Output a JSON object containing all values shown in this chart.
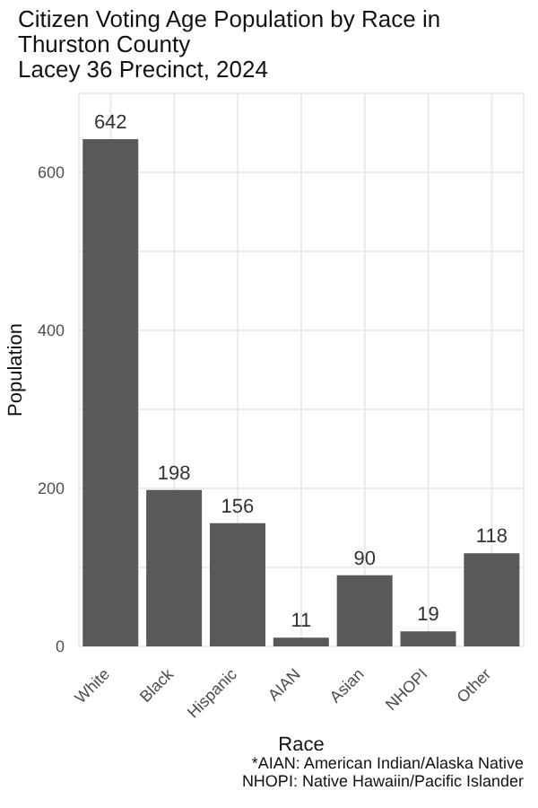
{
  "chart_data": {
    "type": "bar",
    "title": "Citizen Voting Age Population by Race in Thurston County\nLacey 36 Precinct,  2024",
    "xlabel": "Race",
    "ylabel": "Population",
    "categories": [
      "White",
      "Black",
      "Hispanic",
      "AIAN",
      "Asian",
      "NHOPI",
      "Other"
    ],
    "values": [
      642,
      198,
      156,
      11,
      90,
      19,
      118
    ],
    "color": "#595959",
    "data_labels": true,
    "ylim": [
      0,
      700
    ],
    "yticks": [
      0,
      {
        "value": 100,
        "label": null
      },
      200,
      {
        "value": 300,
        "label": null
      },
      400,
      {
        "value": 500,
        "label": null
      },
      600
    ],
    "grid": true,
    "annotations": [
      "*AIAN: American Indian/Alaska Native",
      "NHOPI: Native Hawaiin/Pacific Islander"
    ]
  }
}
